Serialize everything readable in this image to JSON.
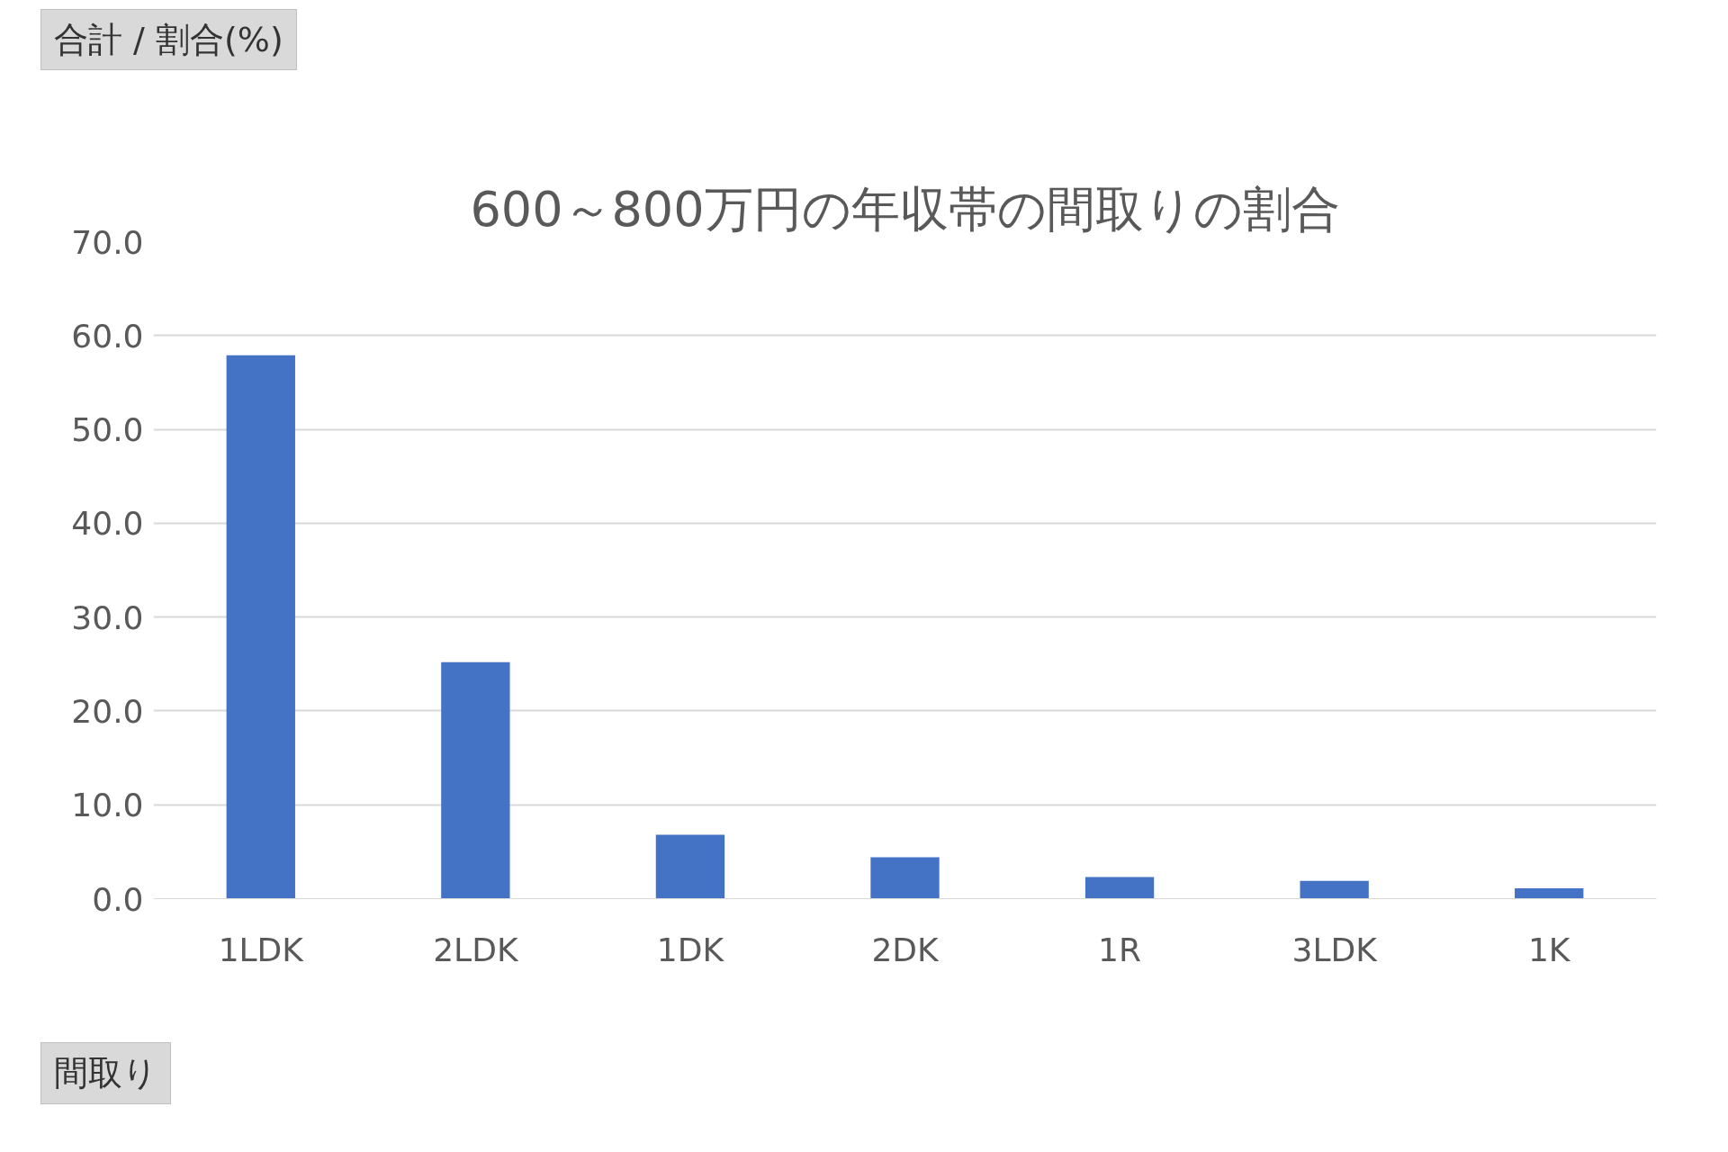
{
  "chart_data": {
    "type": "bar",
    "title": "600～800万円の年収帯の間取りの割合",
    "ylabel": "合計 / 割合(%)",
    "xlabel": "間取り",
    "categories": [
      "1LDK",
      "2LDK",
      "1DK",
      "2DK",
      "1R",
      "3LDK",
      "1K"
    ],
    "values": [
      57.9,
      25.2,
      6.8,
      4.4,
      2.3,
      1.9,
      1.1
    ],
    "color": "#4472c4",
    "ylim": [
      0,
      70
    ],
    "yticks": [
      {
        "value": 0,
        "label": "0.0"
      },
      {
        "value": 10,
        "label": "10.0"
      },
      {
        "value": 20,
        "label": "20.0"
      },
      {
        "value": 30,
        "label": "30.0"
      },
      {
        "value": 40,
        "label": "40.0"
      },
      {
        "value": 50,
        "label": "50.0"
      },
      {
        "value": 60,
        "label": "60.0"
      },
      {
        "value": 70,
        "label": "70.0"
      }
    ],
    "grid": "y"
  }
}
